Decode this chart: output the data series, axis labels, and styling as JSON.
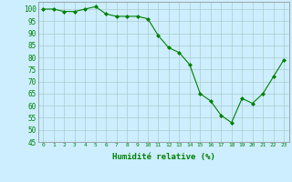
{
  "x": [
    0,
    1,
    2,
    3,
    4,
    5,
    6,
    7,
    8,
    9,
    10,
    11,
    12,
    13,
    14,
    15,
    16,
    17,
    18,
    19,
    20,
    21,
    22,
    23
  ],
  "y": [
    100,
    100,
    99,
    99,
    100,
    101,
    98,
    97,
    97,
    97,
    96,
    89,
    84,
    82,
    77,
    65,
    62,
    56,
    53,
    63,
    61,
    65,
    72,
    79
  ],
  "line_color": "#008000",
  "marker_color": "#008000",
  "bg_color": "#cceeff",
  "grid_color": "#aacccc",
  "xlabel": "Humidité relative (%)",
  "xlabel_color": "#008000",
  "ylim": [
    45,
    103
  ],
  "xlim": [
    -0.5,
    23.5
  ],
  "yticks": [
    45,
    50,
    55,
    60,
    65,
    70,
    75,
    80,
    85,
    90,
    95,
    100
  ],
  "xticks": [
    0,
    1,
    2,
    3,
    4,
    5,
    6,
    7,
    8,
    9,
    10,
    11,
    12,
    13,
    14,
    15,
    16,
    17,
    18,
    19,
    20,
    21,
    22,
    23
  ],
  "tick_color": "#008000",
  "figsize": [
    3.2,
    2.0
  ],
  "dpi": 100
}
